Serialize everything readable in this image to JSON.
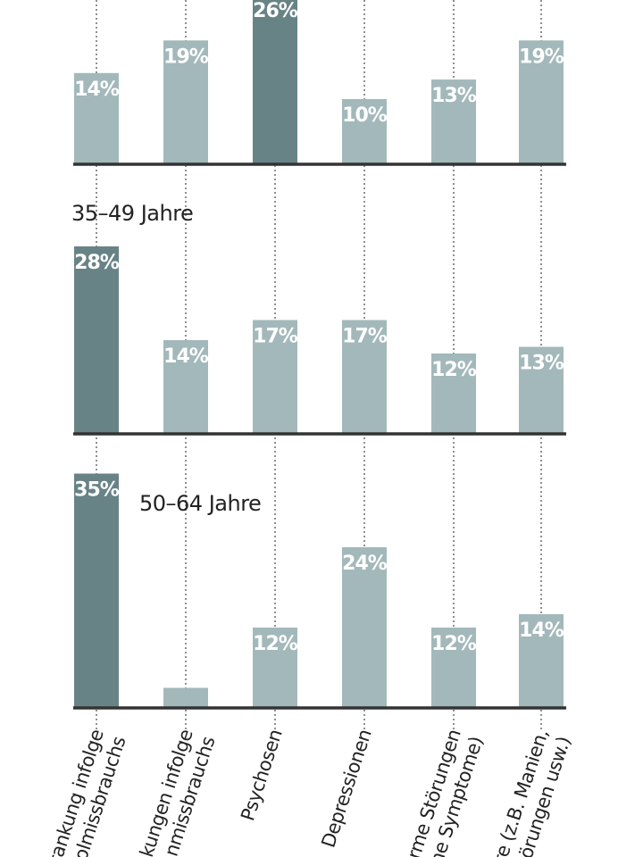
{
  "chart_data": {
    "type": "bar",
    "categories": [
      "Erkrankung infolge Alkoholmissbrauchs",
      "Erkrankungen infolge Drogenmissbrauchs",
      "Psychosen",
      "Depressionen",
      "somatoforme Störungen (körperliche Symptome)",
      "Andere (z.B. Manien, Angststörungen usw.)"
    ],
    "category_lines": [
      [
        "rankung infolge",
        "olmissbrauchs"
      ],
      [
        "kungen infolge",
        "nmissbrauchs"
      ],
      [
        "Psychosen"
      ],
      [
        "Depressionen"
      ],
      [
        "rme Störungen",
        "he Symptome)"
      ],
      [
        "re (z.B. Manien,",
        "törungen usw.)"
      ]
    ],
    "panels": [
      {
        "name": "",
        "values": [
          14,
          19,
          26,
          10,
          13,
          19
        ],
        "ylim": [
          0,
          30
        ],
        "highlight_index": 2
      },
      {
        "name": "35–49 Jahre",
        "values": [
          28,
          14,
          17,
          17,
          12,
          13
        ],
        "ylim": [
          0,
          35
        ],
        "highlight_index": 0
      },
      {
        "name": "50–64 Jahre",
        "values": [
          35,
          3,
          12,
          24,
          12,
          14
        ],
        "ylim": [
          0,
          39
        ],
        "highlight_index": 0
      }
    ],
    "unit": "%",
    "colors": {
      "bar": "#a3b8ba",
      "highlight": "#688386",
      "baseline": "#333333",
      "guide": "#555555"
    },
    "grid": "dotted vertical guide per category"
  }
}
